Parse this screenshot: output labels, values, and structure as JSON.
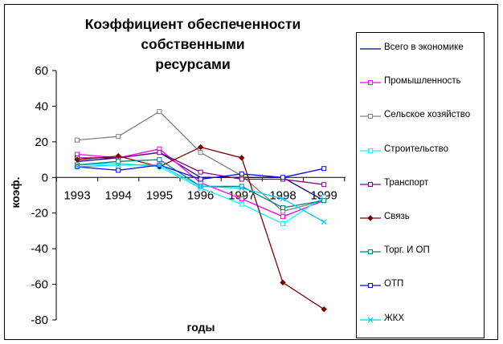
{
  "chart_data": {
    "type": "line",
    "title": "Коэффициент обеспеченности собственными ресурсами",
    "title_lines": [
      "Коэффициент обеспеченности собственными",
      "ресурсами"
    ],
    "xlabel": "годы",
    "ylabel": "коэф.",
    "categories": [
      "1993",
      "1994",
      "1995",
      "1996",
      "1997",
      "1998",
      "1999"
    ],
    "ylim": [
      -80,
      60
    ],
    "yticks": [
      "60",
      "40",
      "20",
      "0",
      "-20",
      "-40",
      "-60",
      "-80"
    ],
    "grid": false,
    "legend_position": "right",
    "series": [
      {
        "name": "Всего в экономике",
        "color": "#000080",
        "marker": "none",
        "values": [
          9,
          11,
          14,
          0,
          0,
          0,
          -13
        ]
      },
      {
        "name": "Промышленность",
        "color": "#ff00ff",
        "marker": "square",
        "values": [
          13,
          11,
          16,
          -3,
          -12,
          -22,
          -13
        ]
      },
      {
        "name": "Сельское хозяйство",
        "color": "#808080",
        "marker": "square",
        "values": [
          21,
          23,
          37,
          14,
          1,
          -19,
          -13
        ]
      },
      {
        "name": "Строительство",
        "color": "#00ffff",
        "marker": "square",
        "values": [
          7,
          8,
          6,
          -6,
          -15,
          -26,
          -11
        ]
      },
      {
        "name": "Транспорт",
        "color": "#800080",
        "marker": "square",
        "values": [
          11,
          11,
          14,
          3,
          -1,
          -1,
          -4
        ]
      },
      {
        "name": "Связь",
        "color": "#800000",
        "marker": "diamond",
        "values": [
          10,
          12,
          6,
          17,
          11,
          -59,
          -74
        ]
      },
      {
        "name": "Торг.  И ОП",
        "color": "#008080",
        "marker": "square",
        "values": [
          7,
          9,
          10,
          -5,
          -5,
          -17,
          -13
        ]
      },
      {
        "name": "ОТП",
        "color": "#0000ff",
        "marker": "square",
        "values": [
          6,
          4,
          7,
          -1,
          2,
          0,
          5
        ]
      },
      {
        "name": "ЖКХ",
        "color": "#00ccff",
        "marker": "x",
        "values": [
          6,
          7,
          7,
          -5,
          -6,
          -12,
          -25
        ]
      }
    ]
  }
}
